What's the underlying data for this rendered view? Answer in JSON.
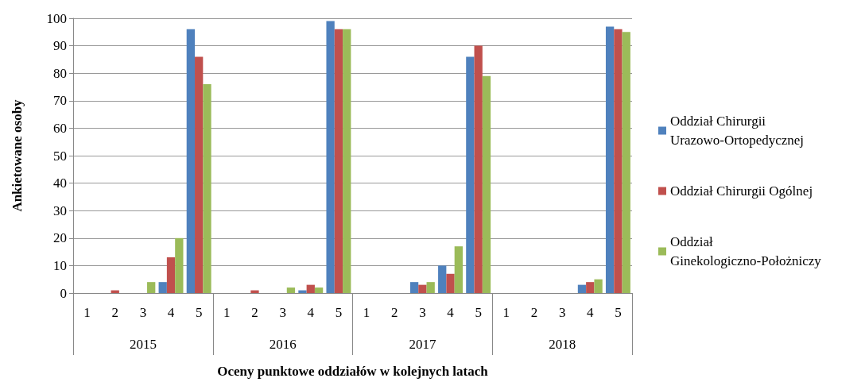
{
  "chart_data": {
    "type": "bar",
    "xlabel": "Oceny punktowe oddziałów w kolejnych latach",
    "ylabel": "Ankietowane osoby",
    "categories": [
      "1",
      "2",
      "3",
      "4",
      "5",
      "1",
      "2",
      "3",
      "4",
      "5",
      "1",
      "2",
      "3",
      "4",
      "5",
      "1",
      "2",
      "3",
      "4",
      "5"
    ],
    "annotations": [
      "2015",
      "2016",
      "2017",
      "2018"
    ],
    "series": [
      {
        "name": "Oddział Chirurgii Urazowo-Ortopedycznej",
        "color": "#4f81bd",
        "values": [
          0,
          0,
          0,
          4,
          96,
          0,
          0,
          0,
          1,
          99,
          0,
          0,
          4,
          10,
          86,
          0,
          0,
          0,
          3,
          97
        ]
      },
      {
        "name": "Oddział Chirurgii Ogólnej",
        "color": "#c0504d",
        "values": [
          0,
          1,
          0,
          13,
          86,
          0,
          1,
          0,
          3,
          96,
          0,
          0,
          3,
          7,
          90,
          0,
          0,
          0,
          4,
          96
        ]
      },
      {
        "name": "Oddział Ginekologiczno-Położniczy",
        "color": "#9bbb59",
        "values": [
          0,
          0,
          4,
          20,
          76,
          0,
          0,
          2,
          2,
          96,
          0,
          0,
          4,
          17,
          79,
          0,
          0,
          0,
          5,
          95
        ]
      }
    ],
    "ylim": [
      0,
      100
    ],
    "yticks": [
      0,
      10,
      20,
      30,
      40,
      50,
      60,
      70,
      80,
      90,
      100
    ],
    "grid": "y",
    "legend": "right"
  }
}
